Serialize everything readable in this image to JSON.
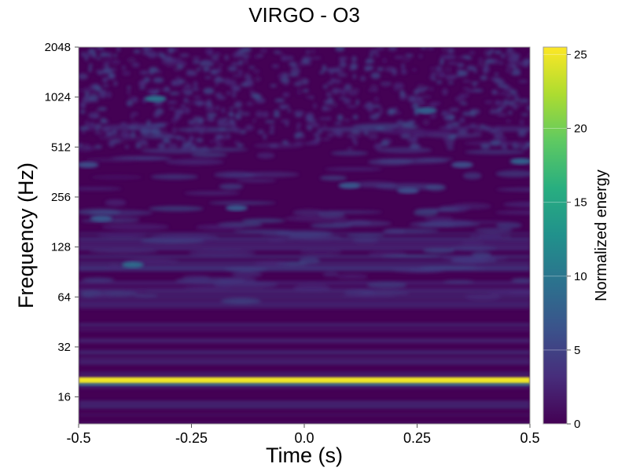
{
  "chart_data": {
    "type": "heatmap",
    "title": "VIRGO - O3",
    "xlabel": "Time (s)",
    "ylabel": "Frequency (Hz)",
    "xlim": [
      -0.5,
      0.5
    ],
    "ylim": [
      11,
      2048
    ],
    "y_scale": "log2",
    "x_ticks": [
      {
        "value": -0.5,
        "label": "-0.5"
      },
      {
        "value": -0.25,
        "label": "-0.25"
      },
      {
        "value": 0.0,
        "label": "0.0"
      },
      {
        "value": 0.25,
        "label": "0.25"
      },
      {
        "value": 0.5,
        "label": "0.5"
      }
    ],
    "y_ticks": [
      {
        "value": 16,
        "label": "16"
      },
      {
        "value": 32,
        "label": "32"
      },
      {
        "value": 64,
        "label": "64"
      },
      {
        "value": 128,
        "label": "128"
      },
      {
        "value": 256,
        "label": "256"
      },
      {
        "value": 512,
        "label": "512"
      },
      {
        "value": 1024,
        "label": "1024"
      },
      {
        "value": 2048,
        "label": "2048"
      }
    ],
    "colorbar": {
      "label": "Normalized energy",
      "colormap": "viridis",
      "range": [
        0,
        25.5
      ],
      "ticks": [
        {
          "value": 0,
          "label": "0"
        },
        {
          "value": 5,
          "label": "5"
        },
        {
          "value": 10,
          "label": "10"
        },
        {
          "value": 15,
          "label": "15"
        },
        {
          "value": 20,
          "label": "20"
        },
        {
          "value": 25,
          "label": "25"
        }
      ]
    },
    "features": [
      {
        "kind": "line",
        "frequency_hz": 20,
        "energy": 25,
        "time_range": [
          -0.5,
          0.5
        ]
      },
      {
        "kind": "band",
        "frequency_hz": 19,
        "energy": 8,
        "time_range": [
          -0.5,
          0.5
        ]
      },
      {
        "kind": "blob",
        "time": -0.38,
        "frequency_hz": 100,
        "energy": 9
      },
      {
        "kind": "blob",
        "time": -0.45,
        "frequency_hz": 190,
        "energy": 7
      },
      {
        "kind": "blob",
        "time": -0.15,
        "frequency_hz": 220,
        "energy": 7
      },
      {
        "kind": "blob",
        "time": 0.1,
        "frequency_hz": 300,
        "energy": 7
      },
      {
        "kind": "blob",
        "time": 0.23,
        "frequency_hz": 280,
        "energy": 6
      },
      {
        "kind": "blob",
        "time": -0.33,
        "frequency_hz": 1000,
        "energy": 10
      },
      {
        "kind": "blob",
        "time": 0.27,
        "frequency_hz": 850,
        "energy": 8
      },
      {
        "kind": "blob",
        "time": 0.48,
        "frequency_hz": 420,
        "energy": 8
      },
      {
        "kind": "blob",
        "time": 0.35,
        "frequency_hz": 400,
        "energy": 6
      },
      {
        "kind": "blob",
        "time": -0.48,
        "frequency_hz": 400,
        "energy": 6
      }
    ]
  }
}
